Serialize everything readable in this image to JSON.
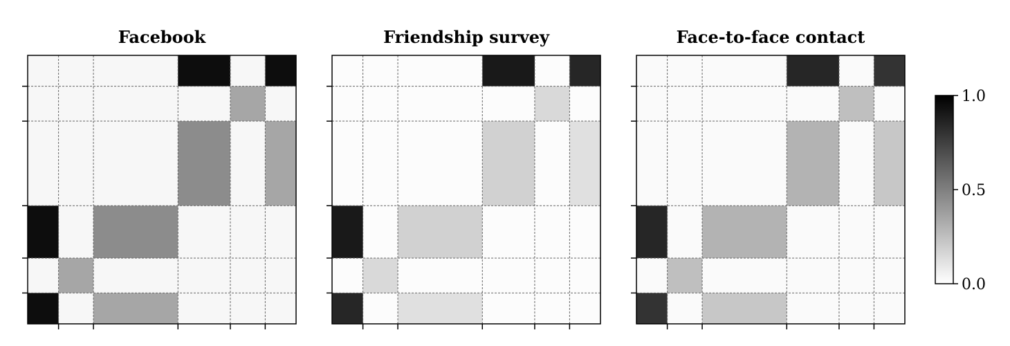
{
  "chart_data": [
    {
      "type": "heatmap",
      "title": "Facebook",
      "block_boundaries": [
        0.115,
        0.245,
        0.56,
        0.755,
        0.885
      ],
      "block_levels": [
        [
          0.03,
          0.03,
          0.03,
          0.95,
          0.03,
          0.95
        ],
        [
          0.03,
          0.03,
          0.03,
          0.03,
          0.35,
          0.03
        ],
        [
          0.03,
          0.03,
          0.03,
          0.45,
          0.03,
          0.35
        ],
        [
          0.95,
          0.03,
          0.45,
          0.03,
          0.03,
          0.03
        ],
        [
          0.03,
          0.35,
          0.03,
          0.03,
          0.03,
          0.03
        ],
        [
          0.95,
          0.03,
          0.35,
          0.03,
          0.03,
          0.03
        ]
      ]
    },
    {
      "type": "heatmap",
      "title": "Friendship survey",
      "block_boundaries": [
        0.115,
        0.245,
        0.56,
        0.755,
        0.885
      ],
      "block_levels": [
        [
          0.01,
          0.01,
          0.01,
          0.9,
          0.01,
          0.85
        ],
        [
          0.01,
          0.01,
          0.01,
          0.01,
          0.15,
          0.01
        ],
        [
          0.01,
          0.01,
          0.01,
          0.18,
          0.01,
          0.12
        ],
        [
          0.9,
          0.01,
          0.18,
          0.01,
          0.01,
          0.01
        ],
        [
          0.01,
          0.15,
          0.01,
          0.01,
          0.01,
          0.01
        ],
        [
          0.85,
          0.01,
          0.12,
          0.01,
          0.01,
          0.01
        ]
      ]
    },
    {
      "type": "heatmap",
      "title": "Face-to-face contact",
      "block_boundaries": [
        0.115,
        0.245,
        0.56,
        0.755,
        0.885
      ],
      "block_levels": [
        [
          0.02,
          0.02,
          0.02,
          0.85,
          0.02,
          0.8
        ],
        [
          0.02,
          0.02,
          0.02,
          0.02,
          0.25,
          0.02
        ],
        [
          0.02,
          0.02,
          0.02,
          0.3,
          0.02,
          0.22
        ],
        [
          0.85,
          0.02,
          0.3,
          0.02,
          0.02,
          0.02
        ],
        [
          0.02,
          0.25,
          0.02,
          0.02,
          0.02,
          0.02
        ],
        [
          0.8,
          0.02,
          0.22,
          0.02,
          0.02,
          0.02
        ]
      ]
    }
  ],
  "colorbar": {
    "ticks": [
      "1.0",
      "0.5",
      "0.0"
    ],
    "tick_values": [
      1.0,
      0.5,
      0.0
    ],
    "colormap": [
      "#ffffff",
      "#000000"
    ]
  }
}
